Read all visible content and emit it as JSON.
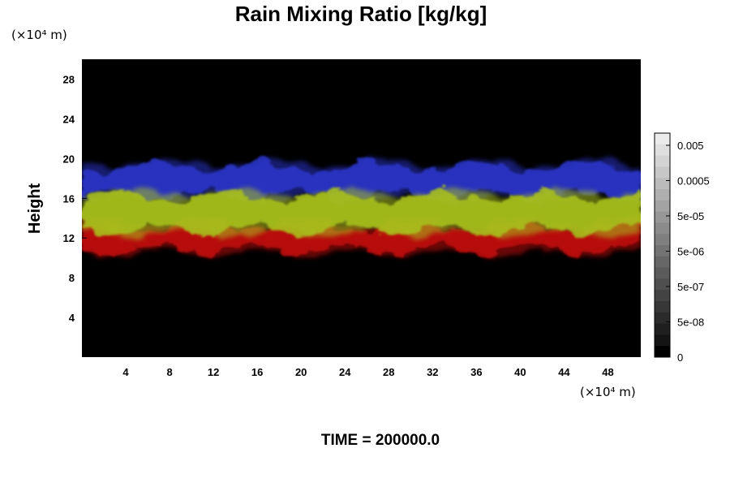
{
  "chart_data": {
    "type": "heatmap",
    "title": "Rain Mixing Ratio [kg/kg]",
    "ylabel": "Height",
    "x_unit_label": "(×10⁴ m)",
    "y_unit_label": "(×10⁴ m)",
    "footer": "TIME = 200000.0",
    "xlim": [
      0,
      51
    ],
    "ylim": [
      0,
      30
    ],
    "x_ticks": [
      4,
      8,
      12,
      16,
      20,
      24,
      28,
      32,
      36,
      40,
      44,
      48
    ],
    "y_ticks": [
      4,
      8,
      12,
      16,
      20,
      24,
      28
    ],
    "x_tick_labels": [
      "4",
      "8",
      "12",
      "16",
      "20",
      "24",
      "28",
      "32",
      "36",
      "40",
      "44",
      "48"
    ],
    "y_tick_labels": [
      "4",
      "8",
      "12",
      "16",
      "20",
      "24",
      "28"
    ],
    "background_color": "#000000",
    "layers": [
      {
        "color": "#2a35c8",
        "height_range": [
          16,
          19.5
        ]
      },
      {
        "color": "#a8c01e",
        "height_range": [
          12.5,
          16.5
        ]
      },
      {
        "color": "#c01010",
        "height_range": [
          10.5,
          13.5
        ]
      }
    ],
    "colorbar": {
      "levels": 20,
      "labels": [
        "0.005",
        "0.0005",
        "5e-05",
        "5e-06",
        "5e-07",
        "5e-08",
        "0"
      ]
    }
  }
}
